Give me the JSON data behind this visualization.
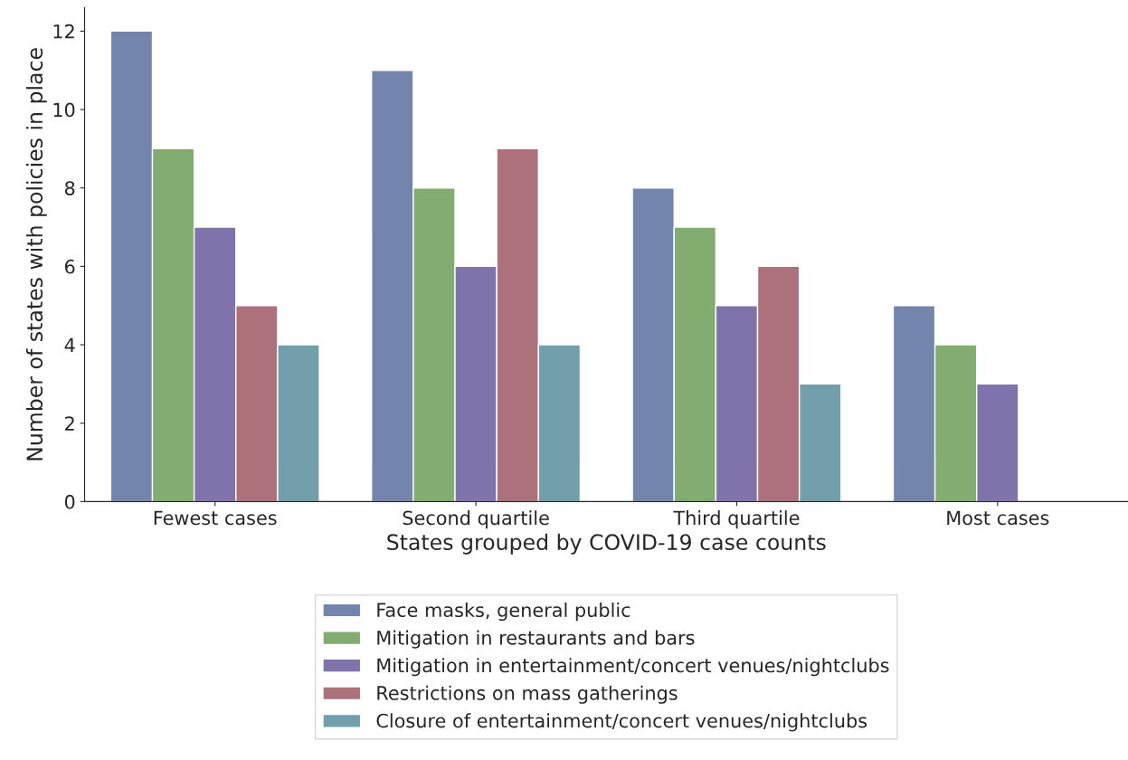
{
  "chart_data": {
    "type": "bar",
    "xlabel": "States grouped by COVID-19 case counts",
    "ylabel": "Number of states with policies in place",
    "categories": [
      "Fewest cases",
      "Second quartile",
      "Third quartile",
      "Most cases"
    ],
    "series": [
      {
        "name": "Face masks, general public",
        "color": "#7384ad",
        "values": [
          12,
          11,
          8,
          5
        ]
      },
      {
        "name": "Mitigation in restaurants and bars",
        "color": "#82ac70",
        "values": [
          9,
          8,
          7,
          4
        ]
      },
      {
        "name": "Mitigation in entertainment/concert venues/nightclubs",
        "color": "#8073ac",
        "values": [
          7,
          6,
          5,
          3
        ]
      },
      {
        "name": "Restrictions on mass gatherings",
        "color": "#ad717c",
        "values": [
          5,
          9,
          6,
          0
        ]
      },
      {
        "name": "Closure of entertainment/concert venues/nightclubs",
        "color": "#719fac",
        "values": [
          4,
          4,
          3,
          0
        ]
      }
    ],
    "ylim": [
      0,
      12.6
    ],
    "yticks": [
      0,
      2,
      4,
      6,
      8,
      10,
      12
    ],
    "grid": false,
    "legend": "bottom"
  }
}
